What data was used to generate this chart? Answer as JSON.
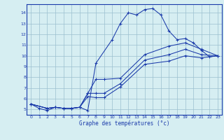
{
  "xlabel": "Graphe des températures (°c)",
  "background_color": "#d6eef2",
  "line_color": "#1a3aaa",
  "grid_color": "#9bbfcf",
  "xlim": [
    -0.5,
    23.5
  ],
  "ylim": [
    4.5,
    14.8
  ],
  "xticks": [
    0,
    1,
    2,
    3,
    4,
    5,
    6,
    7,
    8,
    9,
    10,
    11,
    12,
    13,
    14,
    15,
    16,
    17,
    18,
    19,
    20,
    21,
    22,
    23
  ],
  "yticks": [
    5,
    6,
    7,
    8,
    9,
    10,
    11,
    12,
    13,
    14
  ],
  "series": [
    {
      "x": [
        0,
        1,
        2,
        3,
        4,
        5,
        6,
        7,
        8,
        10,
        11,
        12,
        13,
        14,
        15,
        16,
        17,
        18,
        19,
        20,
        21,
        22,
        23
      ],
      "y": [
        5.5,
        5.1,
        4.9,
        5.2,
        5.1,
        5.1,
        5.2,
        4.9,
        9.3,
        11.5,
        13.0,
        14.0,
        13.8,
        14.3,
        14.4,
        13.8,
        12.3,
        11.5,
        11.6,
        11.2,
        10.5,
        9.9,
        10.0
      ]
    },
    {
      "x": [
        0,
        2,
        3,
        4,
        5,
        6,
        7,
        8,
        9,
        11,
        14,
        17,
        19,
        21,
        23
      ],
      "y": [
        5.5,
        5.1,
        5.2,
        5.1,
        5.1,
        5.2,
        6.5,
        7.8,
        7.8,
        7.9,
        10.1,
        10.9,
        11.2,
        10.6,
        10.0
      ]
    },
    {
      "x": [
        0,
        2,
        3,
        4,
        5,
        6,
        7,
        8,
        9,
        11,
        14,
        17,
        19,
        21,
        23
      ],
      "y": [
        5.5,
        5.1,
        5.2,
        5.1,
        5.1,
        5.2,
        6.2,
        6.1,
        6.1,
        7.1,
        9.2,
        9.5,
        10.0,
        9.8,
        10.0
      ]
    },
    {
      "x": [
        0,
        2,
        3,
        4,
        5,
        6,
        7,
        8,
        9,
        11,
        14,
        17,
        19,
        21,
        23
      ],
      "y": [
        5.5,
        5.1,
        5.2,
        5.1,
        5.1,
        5.2,
        6.5,
        6.5,
        6.5,
        7.4,
        9.6,
        10.1,
        10.6,
        10.1,
        10.0
      ]
    }
  ]
}
